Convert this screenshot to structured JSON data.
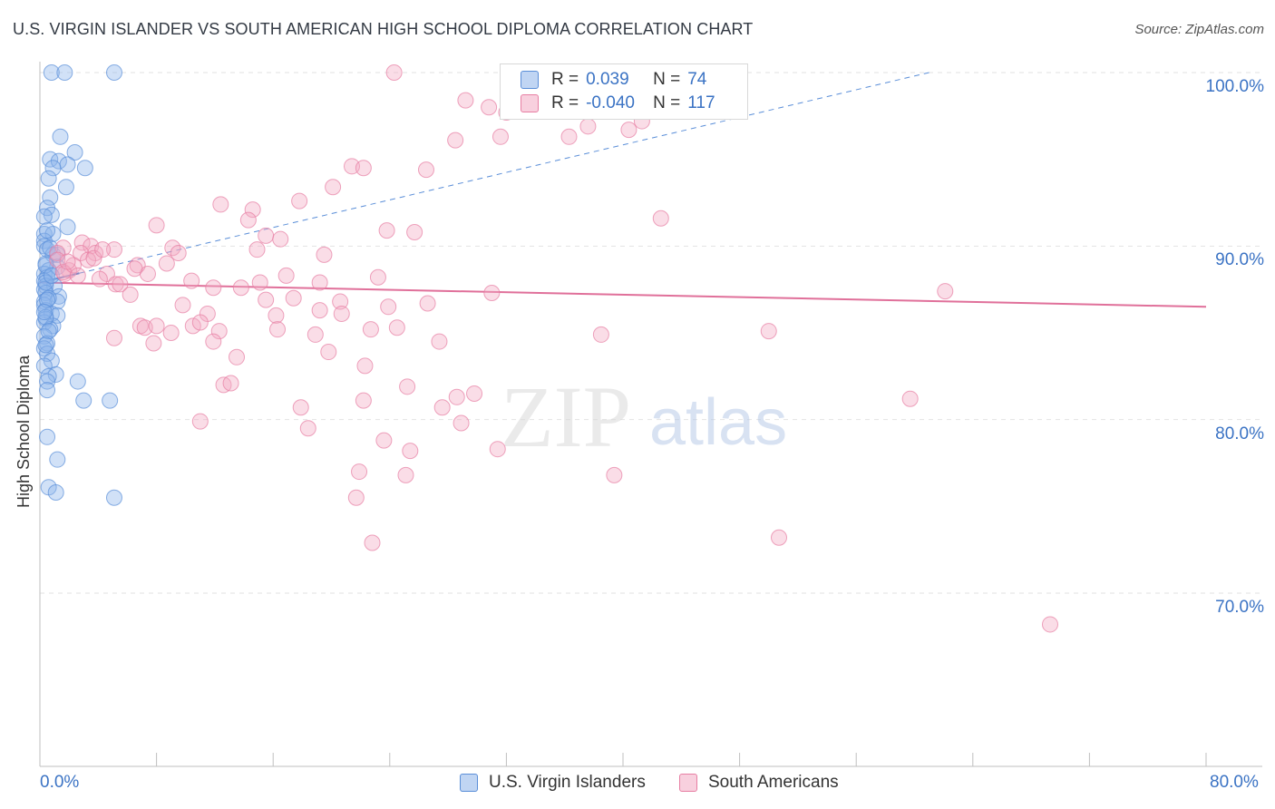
{
  "title": "U.S. VIRGIN ISLANDER VS SOUTH AMERICAN HIGH SCHOOL DIPLOMA CORRELATION CHART",
  "source": "Source: ZipAtlas.com",
  "watermark": {
    "zip": "ZIP",
    "atlas": "atlas"
  },
  "legend": {
    "rows": [
      {
        "r_label": "R =",
        "r_value": "0.039",
        "n_label": "N =",
        "n_value": "74",
        "color": "#8db3ea"
      },
      {
        "r_label": "R =",
        "r_value": "-0.040",
        "n_label": "N =",
        "n_value": "117",
        "color": "#f2a9c3"
      }
    ]
  },
  "chart_data": {
    "type": "scatter",
    "title": "U.S. VIRGIN ISLANDER VS SOUTH AMERICAN HIGH SCHOOL DIPLOMA CORRELATION CHART",
    "xlabel": "",
    "ylabel": "High School Diploma",
    "x_tick_labels": [
      "0.0%",
      "80.0%"
    ],
    "y_tick_labels": [
      "100.0%",
      "90.0%",
      "80.0%",
      "70.0%"
    ],
    "y_ticks": [
      100,
      90,
      80,
      70
    ],
    "xlim": [
      0,
      80
    ],
    "ylim": [
      60,
      100
    ],
    "grid": true,
    "legend_position": "bottom",
    "series": [
      {
        "name": "U.S. Virgin Islanders",
        "color": "#8db3ea",
        "edge": "#5a8ed8",
        "trend": {
          "x": [
            0,
            61
          ],
          "y": [
            87.9,
            100.0
          ],
          "solid_until_x": 2.7
        },
        "points": [
          [
            0.8,
            100
          ],
          [
            1.7,
            100
          ],
          [
            5.1,
            100
          ],
          [
            1.4,
            96.3
          ],
          [
            2.4,
            95.4
          ],
          [
            0.7,
            95.0
          ],
          [
            1.3,
            94.9
          ],
          [
            1.9,
            94.7
          ],
          [
            0.9,
            94.5
          ],
          [
            3.1,
            94.5
          ],
          [
            0.6,
            93.9
          ],
          [
            1.8,
            93.4
          ],
          [
            0.7,
            92.8
          ],
          [
            0.5,
            92.2
          ],
          [
            0.8,
            91.8
          ],
          [
            0.3,
            91.7
          ],
          [
            1.9,
            91.1
          ],
          [
            0.3,
            90.7
          ],
          [
            0.9,
            90.7
          ],
          [
            0.3,
            90.3
          ],
          [
            0.3,
            90.0
          ],
          [
            0.5,
            89.8
          ],
          [
            0.9,
            89.5
          ],
          [
            1.2,
            89.5
          ],
          [
            0.4,
            89.0
          ],
          [
            1.2,
            88.8
          ],
          [
            0.6,
            88.6
          ],
          [
            0.3,
            88.4
          ],
          [
            0.5,
            88.2
          ],
          [
            0.3,
            88.0
          ],
          [
            0.4,
            87.7
          ],
          [
            1.0,
            87.7
          ],
          [
            0.3,
            87.5
          ],
          [
            0.4,
            87.3
          ],
          [
            1.3,
            87.1
          ],
          [
            0.3,
            86.8
          ],
          [
            1.2,
            86.8
          ],
          [
            0.3,
            86.6
          ],
          [
            0.4,
            86.3
          ],
          [
            0.8,
            86.1
          ],
          [
            1.2,
            86.0
          ],
          [
            0.4,
            85.8
          ],
          [
            0.3,
            85.6
          ],
          [
            0.9,
            85.4
          ],
          [
            0.7,
            85.2
          ],
          [
            0.3,
            84.8
          ],
          [
            0.5,
            84.4
          ],
          [
            0.3,
            84.1
          ],
          [
            0.5,
            83.8
          ],
          [
            0.8,
            83.4
          ],
          [
            0.3,
            83.1
          ],
          [
            1.1,
            82.6
          ],
          [
            0.6,
            82.5
          ],
          [
            0.5,
            82.2
          ],
          [
            2.6,
            82.2
          ],
          [
            0.5,
            81.7
          ],
          [
            3.0,
            81.1
          ],
          [
            4.8,
            81.1
          ],
          [
            0.5,
            79.0
          ],
          [
            1.2,
            77.7
          ],
          [
            0.6,
            76.1
          ],
          [
            1.1,
            75.8
          ],
          [
            5.1,
            75.5
          ],
          [
            0.4,
            88.9
          ],
          [
            0.6,
            87.0
          ],
          [
            0.4,
            85.9
          ],
          [
            0.7,
            89.9
          ],
          [
            0.4,
            87.9
          ],
          [
            0.5,
            86.9
          ],
          [
            0.3,
            86.2
          ],
          [
            0.6,
            85.1
          ],
          [
            0.4,
            84.3
          ],
          [
            0.8,
            88.3
          ],
          [
            0.5,
            90.9
          ]
        ]
      },
      {
        "name": "South Americans",
        "color": "#f2a9c3",
        "edge": "#e77ea3",
        "trend": {
          "x": [
            0,
            80
          ],
          "y": [
            87.9,
            86.5
          ]
        },
        "points": [
          [
            24.3,
            100
          ],
          [
            32.5,
            100
          ],
          [
            39.7,
            100
          ],
          [
            29.2,
            98.4
          ],
          [
            30.8,
            98.0
          ],
          [
            32.0,
            97.7
          ],
          [
            41.3,
            97.2
          ],
          [
            37.6,
            96.9
          ],
          [
            40.4,
            96.7
          ],
          [
            31.6,
            96.3
          ],
          [
            28.5,
            96.1
          ],
          [
            36.3,
            96.3
          ],
          [
            21.4,
            94.6
          ],
          [
            22.2,
            94.5
          ],
          [
            26.5,
            94.4
          ],
          [
            20.1,
            93.4
          ],
          [
            17.8,
            92.6
          ],
          [
            12.4,
            92.4
          ],
          [
            14.6,
            92.1
          ],
          [
            14.3,
            91.5
          ],
          [
            42.6,
            91.6
          ],
          [
            8.0,
            91.2
          ],
          [
            23.8,
            90.9
          ],
          [
            25.7,
            90.8
          ],
          [
            15.5,
            90.6
          ],
          [
            16.5,
            90.4
          ],
          [
            2.9,
            90.2
          ],
          [
            3.5,
            90.0
          ],
          [
            1.6,
            89.9
          ],
          [
            9.1,
            89.9
          ],
          [
            5.1,
            89.8
          ],
          [
            3.8,
            89.6
          ],
          [
            1.2,
            89.6
          ],
          [
            2.8,
            89.6
          ],
          [
            9.5,
            89.6
          ],
          [
            14.9,
            89.8
          ],
          [
            19.5,
            89.5
          ],
          [
            1.2,
            89.2
          ],
          [
            3.3,
            89.2
          ],
          [
            8.7,
            89.0
          ],
          [
            6.7,
            88.9
          ],
          [
            2.0,
            88.6
          ],
          [
            1.7,
            88.4
          ],
          [
            4.6,
            88.4
          ],
          [
            7.4,
            88.4
          ],
          [
            16.9,
            88.3
          ],
          [
            23.2,
            88.2
          ],
          [
            10.4,
            88.0
          ],
          [
            15.1,
            87.9
          ],
          [
            19.2,
            87.9
          ],
          [
            5.2,
            87.8
          ],
          [
            5.5,
            87.8
          ],
          [
            11.9,
            87.6
          ],
          [
            13.8,
            87.6
          ],
          [
            31.0,
            87.3
          ],
          [
            62.1,
            87.4
          ],
          [
            6.2,
            87.2
          ],
          [
            17.4,
            87.0
          ],
          [
            15.5,
            86.9
          ],
          [
            20.6,
            86.8
          ],
          [
            9.8,
            86.6
          ],
          [
            23.9,
            86.5
          ],
          [
            26.6,
            86.7
          ],
          [
            11.5,
            86.1
          ],
          [
            19.2,
            86.3
          ],
          [
            16.2,
            86.0
          ],
          [
            20.7,
            86.1
          ],
          [
            6.9,
            85.4
          ],
          [
            7.2,
            85.3
          ],
          [
            8.0,
            85.4
          ],
          [
            10.5,
            85.4
          ],
          [
            12.3,
            85.1
          ],
          [
            9.0,
            85.0
          ],
          [
            16.3,
            85.2
          ],
          [
            22.7,
            85.2
          ],
          [
            24.5,
            85.3
          ],
          [
            18.9,
            84.9
          ],
          [
            5.1,
            84.7
          ],
          [
            7.8,
            84.4
          ],
          [
            11.9,
            84.5
          ],
          [
            27.4,
            84.5
          ],
          [
            38.5,
            84.9
          ],
          [
            50.0,
            85.1
          ],
          [
            19.8,
            83.9
          ],
          [
            13.5,
            83.6
          ],
          [
            22.3,
            83.1
          ],
          [
            12.6,
            82.0
          ],
          [
            13.1,
            82.1
          ],
          [
            25.2,
            81.9
          ],
          [
            28.6,
            81.3
          ],
          [
            29.8,
            81.5
          ],
          [
            22.2,
            81.1
          ],
          [
            59.7,
            81.2
          ],
          [
            17.9,
            80.7
          ],
          [
            27.6,
            80.7
          ],
          [
            28.9,
            79.8
          ],
          [
            11.0,
            79.9
          ],
          [
            18.4,
            79.5
          ],
          [
            23.6,
            78.8
          ],
          [
            25.4,
            78.2
          ],
          [
            31.4,
            78.3
          ],
          [
            21.9,
            77.0
          ],
          [
            25.1,
            76.8
          ],
          [
            39.4,
            76.8
          ],
          [
            21.7,
            75.5
          ],
          [
            22.8,
            72.9
          ],
          [
            50.7,
            73.2
          ],
          [
            69.3,
            68.2
          ],
          [
            1.6,
            88.5
          ],
          [
            4.1,
            88.1
          ],
          [
            6.5,
            88.7
          ],
          [
            2.3,
            88.9
          ],
          [
            3.7,
            89.3
          ],
          [
            4.3,
            89.8
          ],
          [
            1.9,
            89.1
          ],
          [
            2.6,
            88.3
          ],
          [
            11.0,
            85.6
          ]
        ]
      }
    ]
  }
}
